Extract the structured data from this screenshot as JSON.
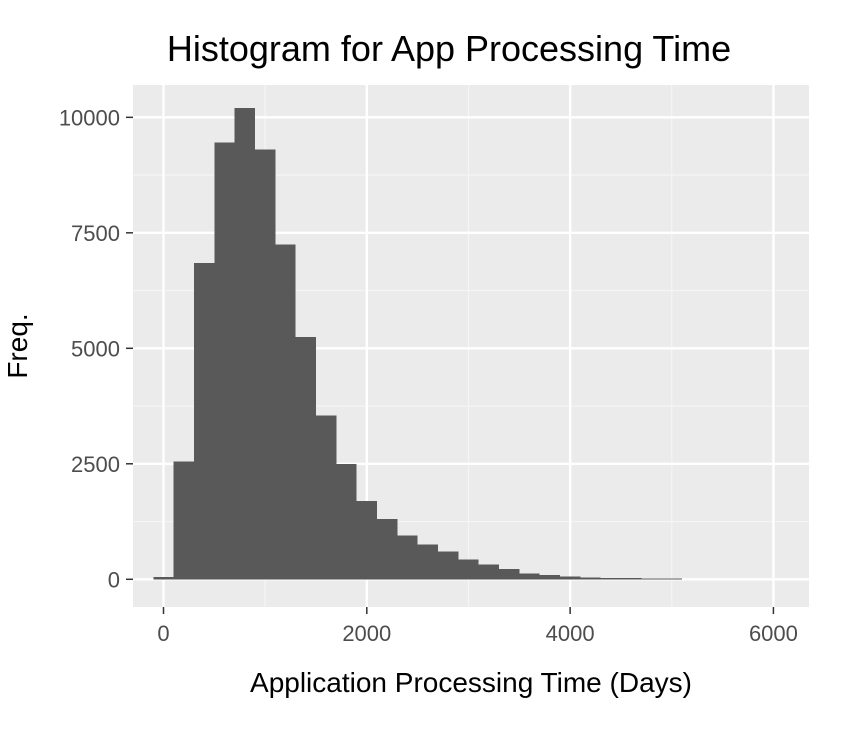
{
  "chart_data": {
    "type": "bar",
    "subtype": "histogram",
    "title": "Histogram for App Processing Time",
    "xlabel": "Application Processing Time (Days)",
    "ylabel": "Freq.",
    "xlim": [
      -300,
      6350
    ],
    "ylim": [
      -600,
      10700
    ],
    "bin_width": 200,
    "x_ticks": [
      0,
      2000,
      4000,
      6000
    ],
    "x_tick_labels": [
      "0",
      "2000",
      "4000",
      "6000"
    ],
    "y_ticks": [
      0,
      2500,
      5000,
      7500,
      10000
    ],
    "y_tick_labels": [
      "0",
      "2500",
      "5000",
      "7500",
      "10000"
    ],
    "bins": [
      {
        "x0": -100,
        "x1": 100,
        "count": 50
      },
      {
        "x0": 100,
        "x1": 300,
        "count": 2550
      },
      {
        "x0": 300,
        "x1": 500,
        "count": 6850
      },
      {
        "x0": 500,
        "x1": 700,
        "count": 9450
      },
      {
        "x0": 700,
        "x1": 900,
        "count": 10200
      },
      {
        "x0": 900,
        "x1": 1100,
        "count": 9300
      },
      {
        "x0": 1100,
        "x1": 1300,
        "count": 7250
      },
      {
        "x0": 1300,
        "x1": 1500,
        "count": 5250
      },
      {
        "x0": 1500,
        "x1": 1700,
        "count": 3550
      },
      {
        "x0": 1700,
        "x1": 1900,
        "count": 2500
      },
      {
        "x0": 1900,
        "x1": 2100,
        "count": 1700
      },
      {
        "x0": 2100,
        "x1": 2300,
        "count": 1300
      },
      {
        "x0": 2300,
        "x1": 2500,
        "count": 950
      },
      {
        "x0": 2500,
        "x1": 2700,
        "count": 750
      },
      {
        "x0": 2700,
        "x1": 2900,
        "count": 600
      },
      {
        "x0": 2900,
        "x1": 3100,
        "count": 430
      },
      {
        "x0": 3100,
        "x1": 3300,
        "count": 320
      },
      {
        "x0": 3300,
        "x1": 3500,
        "count": 220
      },
      {
        "x0": 3500,
        "x1": 3700,
        "count": 130
      },
      {
        "x0": 3700,
        "x1": 3900,
        "count": 90
      },
      {
        "x0": 3900,
        "x1": 4100,
        "count": 60
      },
      {
        "x0": 4100,
        "x1": 4300,
        "count": 40
      },
      {
        "x0": 4300,
        "x1": 4500,
        "count": 30
      },
      {
        "x0": 4500,
        "x1": 4700,
        "count": 25
      },
      {
        "x0": 4700,
        "x1": 4900,
        "count": 20
      },
      {
        "x0": 4900,
        "x1": 5100,
        "count": 15
      }
    ],
    "grid": true,
    "legend": "none"
  },
  "colors": {
    "panel_background": "#ebebeb",
    "grid_major": "#ffffff",
    "grid_minor": "#f5f5f5",
    "bar_fill": "#595959",
    "tick_mark": "#333333"
  }
}
